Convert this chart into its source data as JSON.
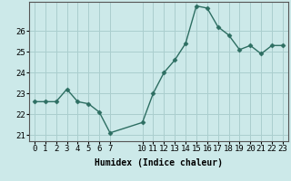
{
  "x": [
    0,
    1,
    2,
    3,
    4,
    5,
    6,
    7,
    10,
    11,
    12,
    13,
    14,
    15,
    16,
    17,
    18,
    19,
    20,
    21,
    22,
    23
  ],
  "y": [
    22.6,
    22.6,
    22.6,
    23.2,
    22.6,
    22.5,
    22.1,
    21.1,
    21.6,
    23.0,
    24.0,
    24.6,
    25.4,
    27.2,
    27.1,
    26.2,
    25.8,
    25.1,
    25.3,
    24.9,
    25.3,
    25.3
  ],
  "title": "",
  "xlabel": "Humidex (Indice chaleur)",
  "ylabel": "",
  "xlim": [
    -0.5,
    23.5
  ],
  "ylim": [
    20.7,
    27.4
  ],
  "yticks": [
    21,
    22,
    23,
    24,
    25,
    26
  ],
  "xticks": [
    0,
    1,
    2,
    3,
    4,
    5,
    6,
    7,
    10,
    11,
    12,
    13,
    14,
    15,
    16,
    17,
    18,
    19,
    20,
    21,
    22,
    23
  ],
  "line_color": "#2d6e62",
  "marker_color": "#2d6e62",
  "bg_color": "#cce9e9",
  "grid_color": "#aacece",
  "marker": "D",
  "marker_size": 2.5,
  "line_width": 1.0,
  "xlabel_fontsize": 7,
  "tick_fontsize": 6.5
}
